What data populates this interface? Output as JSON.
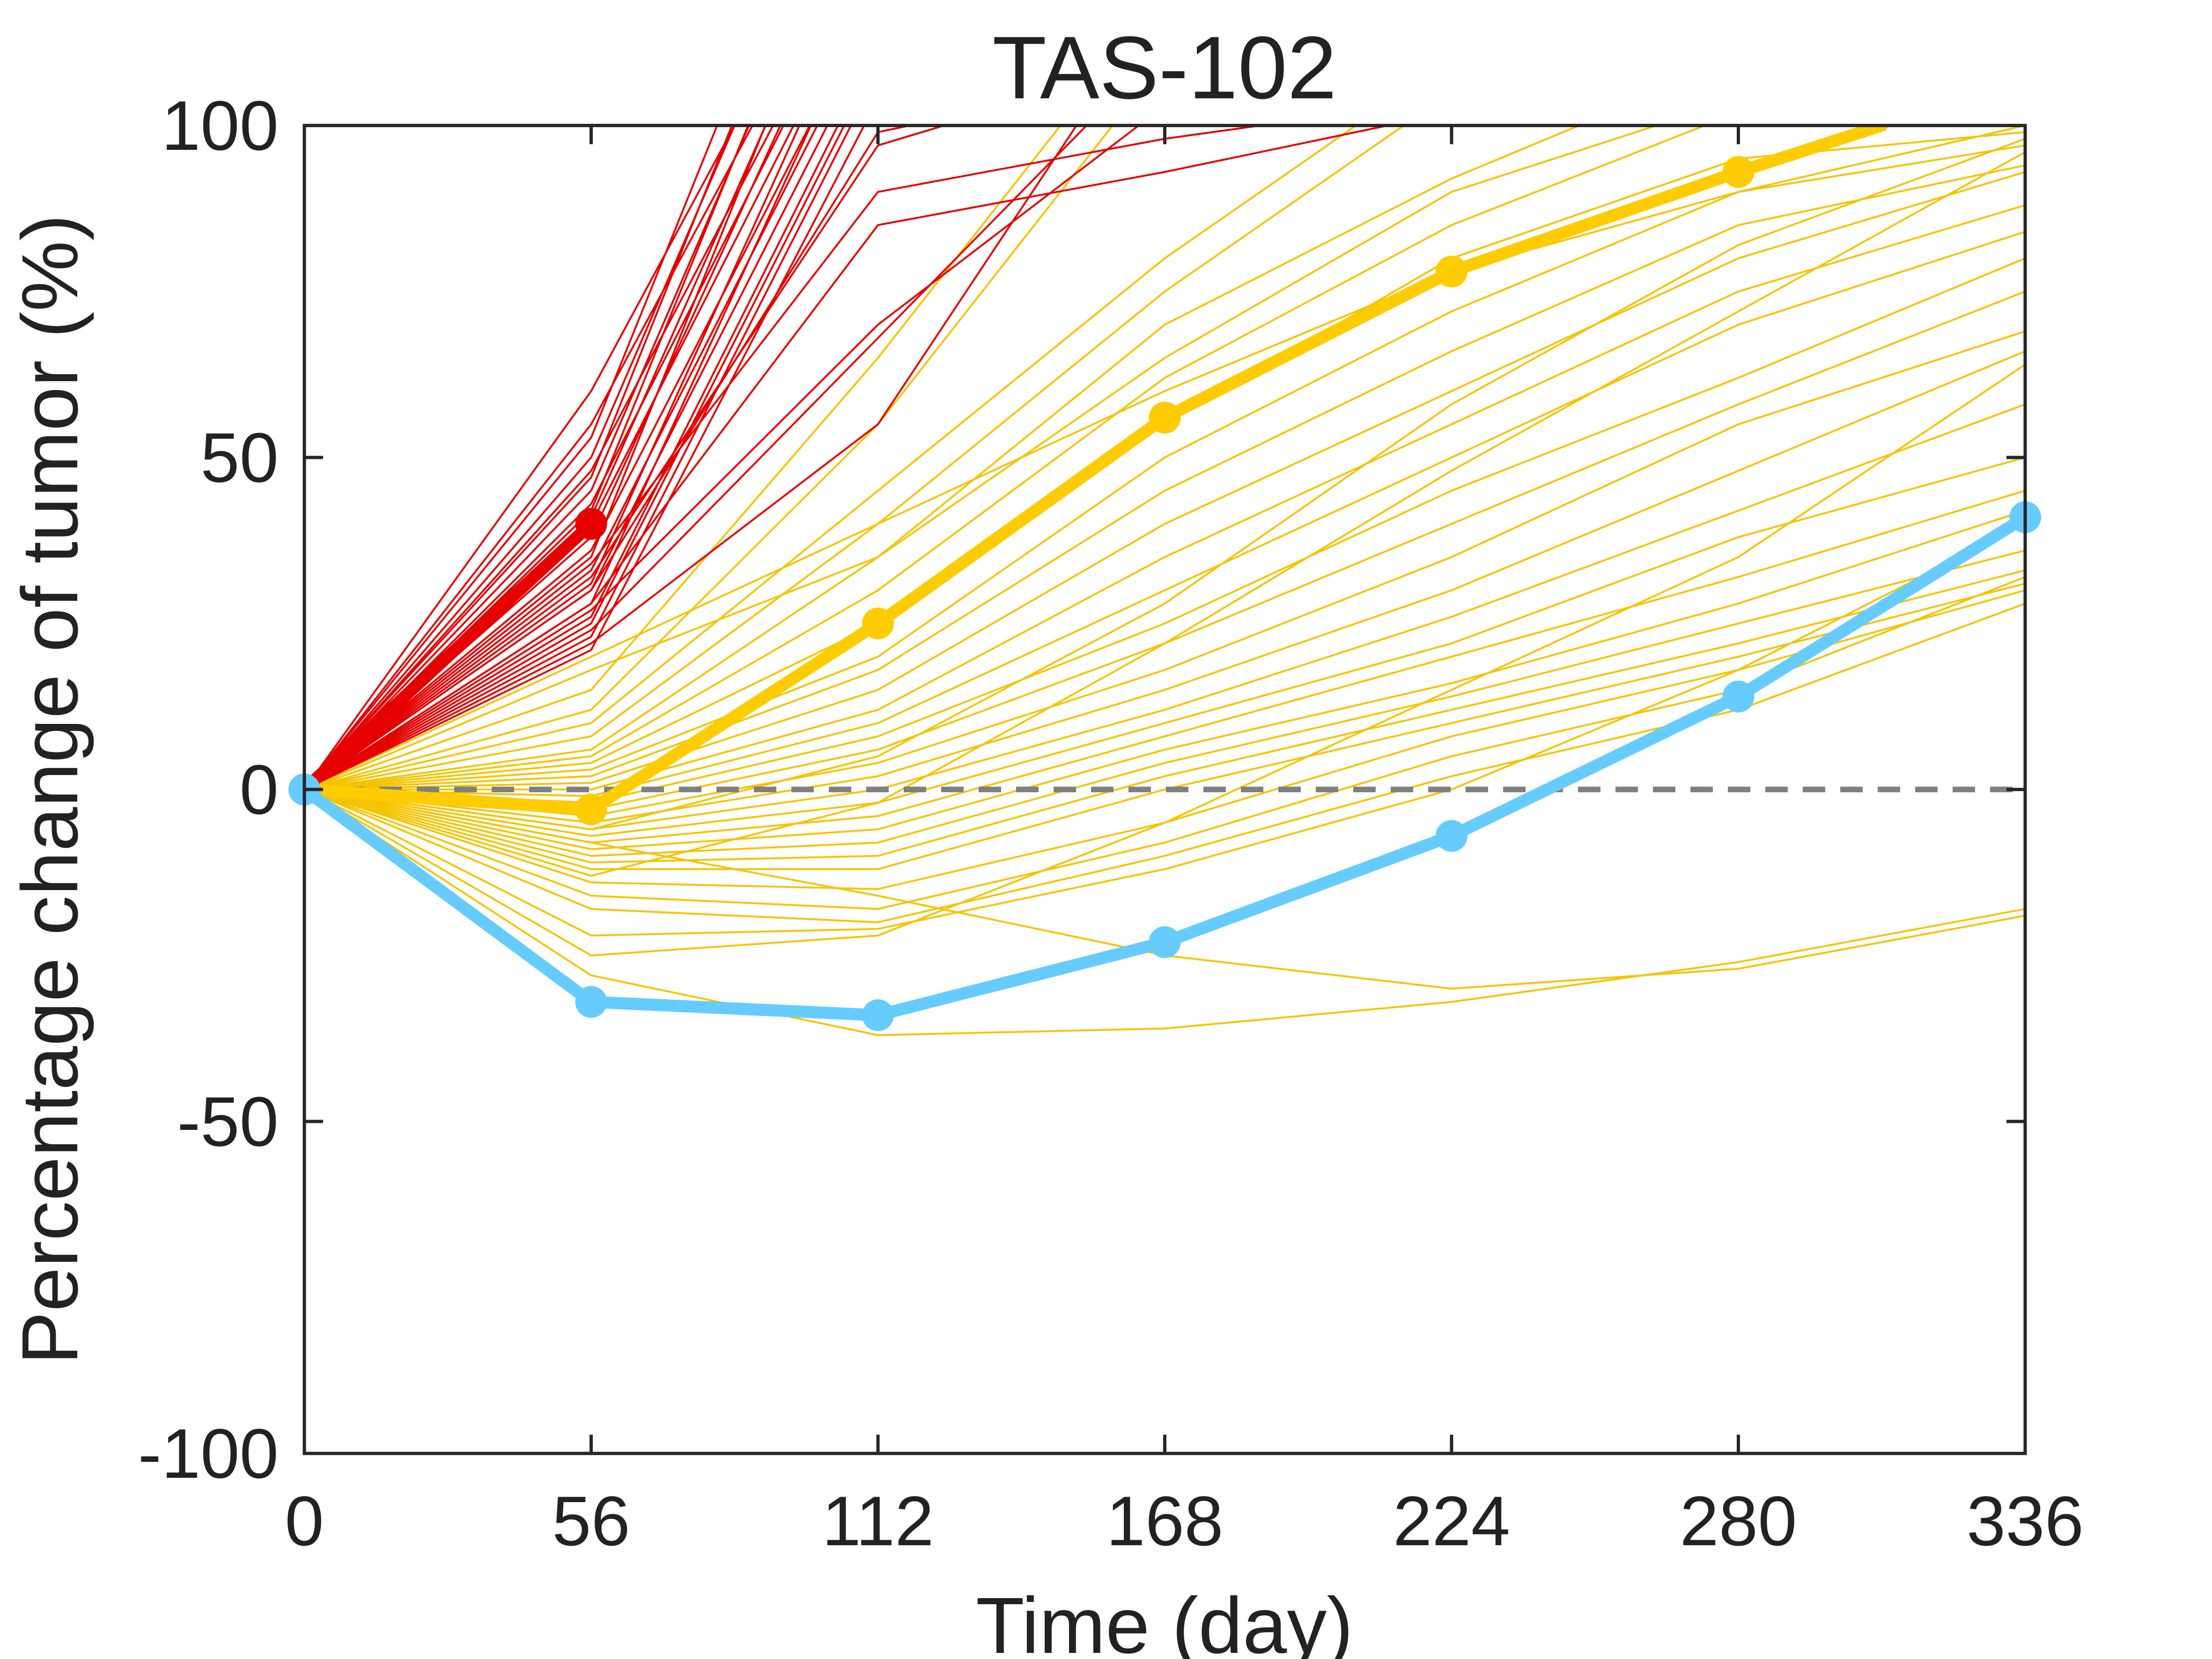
{
  "chart_data": {
    "type": "line",
    "title": "TAS-102",
    "xlabel": "Time (day)",
    "ylabel": "Percentage change of tumor (%)",
    "xlim": [
      0,
      336
    ],
    "ylim": [
      -100,
      100
    ],
    "xticks": [
      0,
      56,
      112,
      168,
      224,
      280,
      336
    ],
    "yticks": [
      -100,
      -50,
      0,
      50,
      100
    ],
    "grid": false,
    "reference_line": {
      "y": 0,
      "style": "dashed",
      "color": "#808080"
    },
    "colors": {
      "progressive": "#e60000",
      "intermediate": "#ffcc00",
      "best": "#66ccff",
      "thin_yellow": "#f5c400"
    },
    "progressive_thin": [
      {
        "x": [
          0,
          56,
          112
        ],
        "y": [
          0,
          60,
          140
        ]
      },
      {
        "x": [
          0,
          56,
          112
        ],
        "y": [
          0,
          55,
          135
        ]
      },
      {
        "x": [
          0,
          56,
          112
        ],
        "y": [
          0,
          50,
          150
        ]
      },
      {
        "x": [
          0,
          56,
          112
        ],
        "y": [
          0,
          48,
          130
        ]
      },
      {
        "x": [
          0,
          56,
          112
        ],
        "y": [
          0,
          45,
          145
        ]
      },
      {
        "x": [
          0,
          56,
          112
        ],
        "y": [
          0,
          43,
          128
        ]
      },
      {
        "x": [
          0,
          56,
          112
        ],
        "y": [
          0,
          41,
          138
        ]
      },
      {
        "x": [
          0,
          56,
          112
        ],
        "y": [
          0,
          40,
          125
        ]
      },
      {
        "x": [
          0,
          56,
          112
        ],
        "y": [
          0,
          38,
          132
        ]
      },
      {
        "x": [
          0,
          56,
          112
        ],
        "y": [
          0,
          36,
          120
        ]
      },
      {
        "x": [
          0,
          56,
          112
        ],
        "y": [
          0,
          35,
          142
        ]
      },
      {
        "x": [
          0,
          56,
          112
        ],
        "y": [
          0,
          33,
          118
        ]
      },
      {
        "x": [
          0,
          56,
          112
        ],
        "y": [
          0,
          31,
          126
        ]
      },
      {
        "x": [
          0,
          56,
          112
        ],
        "y": [
          0,
          30,
          115
        ]
      },
      {
        "x": [
          0,
          56,
          112
        ],
        "y": [
          0,
          28,
          122
        ]
      },
      {
        "x": [
          0,
          56,
          112
        ],
        "y": [
          0,
          26,
          112
        ]
      },
      {
        "x": [
          0,
          56,
          112
        ],
        "y": [
          0,
          25,
          110
        ]
      },
      {
        "x": [
          0,
          56,
          112
        ],
        "y": [
          0,
          23,
          108
        ]
      },
      {
        "x": [
          0,
          56,
          112
        ],
        "y": [
          0,
          21,
          104
        ]
      },
      {
        "x": [
          0,
          56,
          112
        ],
        "y": [
          0,
          53,
          160
        ]
      },
      {
        "x": [
          0,
          56,
          112
        ],
        "y": [
          0,
          47,
          155
        ]
      },
      {
        "x": [
          0,
          56,
          112
        ],
        "y": [
          0,
          42,
          148
        ]
      },
      {
        "x": [
          0,
          56,
          112,
          168
        ],
        "y": [
          0,
          32,
          97,
          110
        ]
      },
      {
        "x": [
          0,
          56,
          112,
          168
        ],
        "y": [
          0,
          30,
          99,
          108
        ]
      },
      {
        "x": [
          0,
          56,
          112,
          168,
          224
        ],
        "y": [
          0,
          34,
          90,
          98,
          104
        ]
      },
      {
        "x": [
          0,
          56,
          112,
          168,
          224
        ],
        "y": [
          0,
          28,
          85,
          93,
          102
        ]
      },
      {
        "x": [
          0,
          56,
          112,
          168
        ],
        "y": [
          0,
          27,
          70,
          103
        ]
      },
      {
        "x": [
          0,
          56,
          112,
          168
        ],
        "y": [
          0,
          24,
          68,
          112
        ]
      },
      {
        "x": [
          0,
          56,
          112,
          168
        ],
        "y": [
          0,
          22,
          55,
          120
        ]
      }
    ],
    "intermediate_thin": [
      {
        "x": [
          0,
          56,
          112,
          168
        ],
        "y": [
          0,
          15,
          65,
          120
        ]
      },
      {
        "x": [
          0,
          56,
          112,
          168
        ],
        "y": [
          0,
          12,
          55,
          110
        ]
      },
      {
        "x": [
          0,
          56,
          112,
          168,
          224
        ],
        "y": [
          0,
          10,
          45,
          80,
          110
        ]
      },
      {
        "x": [
          0,
          56,
          112,
          168,
          224
        ],
        "y": [
          0,
          8,
          40,
          75,
          105
        ]
      },
      {
        "x": [
          0,
          56,
          112,
          168,
          224,
          280
        ],
        "y": [
          0,
          6,
          35,
          70,
          92,
          110
        ]
      },
      {
        "x": [
          0,
          56,
          112,
          168,
          224,
          280
        ],
        "y": [
          0,
          5,
          30,
          62,
          85,
          102
        ]
      },
      {
        "x": [
          0,
          56,
          112,
          168,
          224,
          280,
          336
        ],
        "y": [
          0,
          4,
          25,
          55,
          80,
          95,
          99
        ]
      },
      {
        "x": [
          0,
          56,
          112,
          168,
          224,
          280,
          336
        ],
        "y": [
          0,
          3,
          20,
          50,
          72,
          90,
          97
        ]
      },
      {
        "x": [
          0,
          56,
          112,
          168,
          224,
          280,
          336
        ],
        "y": [
          0,
          2,
          18,
          45,
          66,
          85,
          94
        ]
      },
      {
        "x": [
          0,
          56,
          112,
          168,
          224,
          280,
          336
        ],
        "y": [
          0,
          1,
          15,
          40,
          60,
          80,
          93
        ]
      },
      {
        "x": [
          0,
          56,
          112,
          168,
          224,
          280,
          336
        ],
        "y": [
          0,
          0,
          12,
          35,
          55,
          75,
          88
        ]
      },
      {
        "x": [
          0,
          56,
          112,
          168,
          224,
          280,
          336
        ],
        "y": [
          0,
          -1,
          10,
          30,
          50,
          70,
          84
        ]
      },
      {
        "x": [
          0,
          56,
          112,
          168,
          224,
          280,
          336
        ],
        "y": [
          0,
          -2,
          8,
          25,
          45,
          62,
          80
        ]
      },
      {
        "x": [
          0,
          56,
          112,
          168,
          224,
          280,
          336
        ],
        "y": [
          0,
          -3,
          6,
          22,
          40,
          58,
          75
        ]
      },
      {
        "x": [
          0,
          56,
          112,
          168,
          224,
          280,
          336
        ],
        "y": [
          0,
          -4,
          4,
          18,
          35,
          55,
          69
        ]
      },
      {
        "x": [
          0,
          56,
          112,
          168,
          224,
          280,
          336
        ],
        "y": [
          0,
          -5,
          2,
          15,
          30,
          48,
          66
        ]
      },
      {
        "x": [
          0,
          56,
          112,
          168,
          224,
          280,
          336
        ],
        "y": [
          0,
          -6,
          0,
          12,
          26,
          42,
          58
        ]
      },
      {
        "x": [
          0,
          56,
          112,
          168,
          224,
          280,
          336
        ],
        "y": [
          0,
          -7,
          -2,
          10,
          22,
          38,
          50
        ]
      },
      {
        "x": [
          0,
          56,
          112,
          168,
          224,
          280,
          336
        ],
        "y": [
          0,
          -8,
          -4,
          8,
          20,
          32,
          45
        ]
      },
      {
        "x": [
          0,
          56,
          112,
          168,
          224,
          280,
          336
        ],
        "y": [
          0,
          -9,
          -6,
          6,
          16,
          28,
          42
        ]
      },
      {
        "x": [
          0,
          56,
          112,
          168,
          224,
          280,
          336
        ],
        "y": [
          0,
          -10,
          -8,
          4,
          14,
          25,
          36
        ]
      },
      {
        "x": [
          0,
          56,
          112,
          168,
          224,
          280,
          336
        ],
        "y": [
          0,
          -11,
          -10,
          2,
          12,
          22,
          33
        ]
      },
      {
        "x": [
          0,
          56,
          112,
          168,
          224,
          280,
          336
        ],
        "y": [
          0,
          -12,
          -12,
          0,
          10,
          20,
          31
        ]
      },
      {
        "x": [
          0,
          56,
          112,
          168,
          224,
          280,
          336
        ],
        "y": [
          0,
          -14,
          -15,
          -5,
          8,
          18,
          30
        ]
      },
      {
        "x": [
          0,
          56,
          112,
          168,
          224,
          280,
          336
        ],
        "y": [
          0,
          -16,
          -18,
          -8,
          5,
          15,
          32
        ]
      },
      {
        "x": [
          0,
          56,
          112,
          168,
          224,
          280,
          336
        ],
        "y": [
          0,
          -18,
          -20,
          -10,
          2,
          12,
          28
        ]
      },
      {
        "x": [
          0,
          56,
          112,
          168,
          224,
          280,
          336
        ],
        "y": [
          0,
          -22,
          -21,
          -12,
          0,
          18,
          40
        ]
      },
      {
        "x": [
          0,
          56,
          112,
          168,
          224,
          280,
          336
        ],
        "y": [
          0,
          -25,
          -22,
          -5,
          15,
          35,
          64
        ]
      },
      {
        "x": [
          0,
          56,
          112,
          168,
          224,
          280,
          336
        ],
        "y": [
          0,
          20,
          40,
          60,
          78,
          90,
          100
        ]
      },
      {
        "x": [
          0,
          56,
          112,
          168,
          224,
          280
        ],
        "y": [
          0,
          18,
          35,
          65,
          90,
          104
        ]
      },
      {
        "x": [
          0,
          56,
          112,
          168,
          224,
          280,
          336
        ],
        "y": [
          0,
          -8,
          -16,
          -25,
          -30,
          -27,
          -19
        ]
      },
      {
        "x": [
          0,
          56,
          112,
          168,
          224,
          280,
          336
        ],
        "y": [
          0,
          -28,
          -37,
          -36,
          -32,
          -26,
          -18
        ]
      },
      {
        "x": [
          0,
          56,
          112,
          168,
          224,
          280,
          336
        ],
        "y": [
          0,
          -13,
          -2,
          22,
          48,
          72,
          96
        ]
      },
      {
        "x": [
          0,
          56,
          112,
          168,
          224,
          280,
          336
        ],
        "y": [
          0,
          -6,
          5,
          28,
          58,
          82,
          98
        ]
      }
    ],
    "series": [
      {
        "x": [
          0,
          56
        ],
        "y": [
          0,
          40
        ],
        "color": "#e60000",
        "style": "thick"
      },
      {
        "x": [
          0,
          56,
          112,
          168,
          224,
          280,
          308
        ],
        "y": [
          0,
          -3,
          25,
          56,
          78,
          93,
          100
        ],
        "color": "#ffcc00",
        "style": "thick"
      },
      {
        "x": [
          0,
          56,
          112,
          168,
          224,
          280,
          336
        ],
        "y": [
          0,
          -32,
          -34,
          -23,
          -7,
          14,
          41
        ],
        "color": "#66ccff",
        "style": "thick"
      }
    ]
  }
}
